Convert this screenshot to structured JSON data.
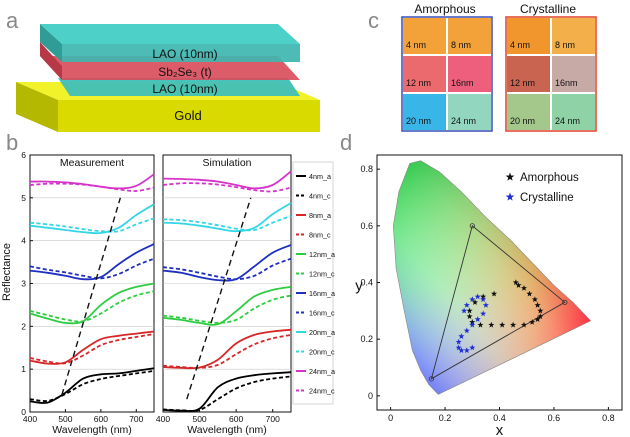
{
  "panel_labels": {
    "a": "a",
    "b": "b",
    "c": "c",
    "d": "d"
  },
  "panel_a": {
    "layers": [
      "LAO (10nm)",
      "Sb₂Se₃ (t)",
      "LAO (10nm)",
      "Gold"
    ],
    "colors": {
      "lao": "#3fbfb8",
      "sbse": "#d94a5a",
      "gold": "#e6e600"
    }
  },
  "panel_c": {
    "titles": [
      "Amorphous",
      "Crystalline"
    ],
    "thicknesses": [
      "4 nm",
      "8 nm",
      "12 nm",
      "16nm",
      "20 nm",
      "24 nm"
    ],
    "amorphous_colors": [
      "#f2a238",
      "#f2a238",
      "#ea6a6e",
      "#ee5f7e",
      "#39b6e8",
      "#93d6c0"
    ],
    "crystalline_colors": [
      "#f0962c",
      "#f3b04a",
      "#c86450",
      "#c7a9a6",
      "#a4c78c",
      "#8fd2a6"
    ],
    "frame_colors": {
      "amorphous": "#3a4db8",
      "crystalline": "#e0402a"
    }
  },
  "chart_data": [
    {
      "type": "line",
      "panel": "b",
      "title": "Measurement",
      "xlabel": "Wavelength (nm)",
      "ylabel": "Reflectance",
      "xlim": [
        400,
        750
      ],
      "ylim": [
        0,
        6
      ],
      "xticks": [
        "400",
        "500",
        "600",
        "700"
      ],
      "yticks": [
        "0",
        "1",
        "2",
        "3",
        "4",
        "5",
        "6"
      ],
      "curves": [
        {
          "offset": 0,
          "color": "#000000",
          "style": "solid",
          "x": [
            400,
            450,
            500,
            550,
            600,
            650,
            700,
            750
          ],
          "y": [
            0.25,
            0.22,
            0.45,
            0.78,
            0.88,
            0.9,
            0.96,
            1.02
          ]
        },
        {
          "offset": 0,
          "color": "#000000",
          "style": "dashed",
          "x": [
            400,
            450,
            500,
            550,
            600,
            650,
            700,
            750
          ],
          "y": [
            0.3,
            0.26,
            0.42,
            0.65,
            0.77,
            0.84,
            0.9,
            0.96
          ]
        },
        {
          "offset": 1,
          "color": "#d62728",
          "style": "solid",
          "x": [
            400,
            450,
            500,
            550,
            600,
            650,
            700,
            750
          ],
          "y": [
            1.2,
            1.13,
            1.16,
            1.45,
            1.7,
            1.78,
            1.83,
            1.88
          ]
        },
        {
          "offset": 1,
          "color": "#d62728",
          "style": "dashed",
          "x": [
            400,
            450,
            500,
            550,
            600,
            650,
            700,
            750
          ],
          "y": [
            1.26,
            1.18,
            1.14,
            1.32,
            1.56,
            1.68,
            1.75,
            1.82
          ]
        },
        {
          "offset": 2,
          "color": "#2ecc40",
          "style": "solid",
          "x": [
            400,
            450,
            500,
            550,
            600,
            650,
            700,
            750
          ],
          "y": [
            2.3,
            2.18,
            2.08,
            2.12,
            2.5,
            2.78,
            2.92,
            3.0
          ]
        },
        {
          "offset": 2,
          "color": "#2ecc40",
          "style": "dashed",
          "x": [
            400,
            450,
            500,
            550,
            600,
            650,
            700,
            750
          ],
          "y": [
            2.36,
            2.26,
            2.16,
            2.12,
            2.3,
            2.55,
            2.72,
            2.82
          ]
        },
        {
          "offset": 3,
          "color": "#1f2fbf",
          "style": "solid",
          "x": [
            400,
            450,
            500,
            550,
            600,
            650,
            700,
            750
          ],
          "y": [
            3.3,
            3.25,
            3.18,
            3.1,
            3.15,
            3.45,
            3.72,
            3.92
          ]
        },
        {
          "offset": 3,
          "color": "#1f2fbf",
          "style": "dashed",
          "x": [
            400,
            450,
            500,
            550,
            600,
            650,
            700,
            750
          ],
          "y": [
            3.4,
            3.32,
            3.26,
            3.18,
            3.12,
            3.22,
            3.42,
            3.58
          ]
        },
        {
          "offset": 4,
          "color": "#33d6e6",
          "style": "solid",
          "x": [
            400,
            450,
            500,
            550,
            600,
            650,
            700,
            750
          ],
          "y": [
            4.35,
            4.3,
            4.25,
            4.2,
            4.18,
            4.3,
            4.6,
            4.85
          ]
        },
        {
          "offset": 4,
          "color": "#33d6e6",
          "style": "dashed",
          "x": [
            400,
            450,
            500,
            550,
            600,
            650,
            700,
            750
          ],
          "y": [
            4.42,
            4.38,
            4.33,
            4.27,
            4.22,
            4.22,
            4.38,
            4.52
          ]
        },
        {
          "offset": 5,
          "color": "#d633cc",
          "style": "solid",
          "x": [
            400,
            450,
            500,
            550,
            600,
            650,
            700,
            750
          ],
          "y": [
            5.38,
            5.38,
            5.36,
            5.32,
            5.26,
            5.22,
            5.28,
            5.55
          ]
        },
        {
          "offset": 5,
          "color": "#d633cc",
          "style": "dashed",
          "x": [
            400,
            450,
            500,
            550,
            600,
            650,
            700,
            750
          ],
          "y": [
            5.3,
            5.33,
            5.33,
            5.31,
            5.26,
            5.2,
            5.16,
            5.24
          ]
        }
      ],
      "guide": {
        "x": [
          490,
          655
        ],
        "y": [
          0.4,
          5.0
        ]
      }
    },
    {
      "type": "line",
      "panel": "b",
      "title": "Simulation",
      "xlabel": "Wavelength (nm)",
      "xlim": [
        400,
        750
      ],
      "ylim": [
        0,
        6
      ],
      "xticks": [
        "400",
        "500",
        "600",
        "700"
      ],
      "legend": [
        "4nm_a",
        "4nm_c",
        "8nm_a",
        "8nm_c",
        "12nm_a",
        "12nm_c",
        "16nm_a",
        "16nm_c",
        "20nm_a",
        "20nm_c",
        "24nm_a",
        "24nm_c"
      ],
      "curves": [
        {
          "offset": 0,
          "color": "#000000",
          "style": "solid",
          "x": [
            400,
            450,
            500,
            550,
            600,
            650,
            700,
            750
          ],
          "y": [
            0.05,
            0.03,
            0.08,
            0.58,
            0.78,
            0.86,
            0.9,
            0.93
          ]
        },
        {
          "offset": 0,
          "color": "#000000",
          "style": "dashed",
          "x": [
            400,
            450,
            500,
            550,
            600,
            650,
            700,
            750
          ],
          "y": [
            0.06,
            0.04,
            0.05,
            0.3,
            0.55,
            0.7,
            0.78,
            0.83
          ]
        },
        {
          "offset": 1,
          "color": "#d62728",
          "style": "solid",
          "x": [
            400,
            450,
            500,
            550,
            600,
            650,
            700,
            750
          ],
          "y": [
            1.05,
            1.03,
            1.04,
            1.22,
            1.6,
            1.8,
            1.88,
            1.92
          ]
        },
        {
          "offset": 1,
          "color": "#d62728",
          "style": "dashed",
          "x": [
            400,
            450,
            500,
            550,
            600,
            650,
            700,
            750
          ],
          "y": [
            1.08,
            1.05,
            1.03,
            1.1,
            1.35,
            1.58,
            1.72,
            1.8
          ]
        },
        {
          "offset": 2,
          "color": "#2ecc40",
          "style": "solid",
          "x": [
            400,
            450,
            500,
            550,
            600,
            650,
            700,
            750
          ],
          "y": [
            2.2,
            2.15,
            2.08,
            2.05,
            2.35,
            2.7,
            2.85,
            2.92
          ]
        },
        {
          "offset": 2,
          "color": "#2ecc40",
          "style": "dashed",
          "x": [
            400,
            450,
            500,
            550,
            600,
            650,
            700,
            750
          ],
          "y": [
            2.25,
            2.2,
            2.13,
            2.08,
            2.15,
            2.42,
            2.62,
            2.72
          ]
        },
        {
          "offset": 3,
          "color": "#1f2fbf",
          "style": "solid",
          "x": [
            400,
            450,
            500,
            550,
            600,
            650,
            700,
            750
          ],
          "y": [
            3.3,
            3.25,
            3.15,
            3.08,
            3.1,
            3.4,
            3.72,
            3.9
          ]
        },
        {
          "offset": 3,
          "color": "#1f2fbf",
          "style": "dashed",
          "x": [
            400,
            450,
            500,
            550,
            600,
            650,
            700,
            750
          ],
          "y": [
            3.38,
            3.33,
            3.25,
            3.16,
            3.1,
            3.18,
            3.42,
            3.58
          ]
        },
        {
          "offset": 4,
          "color": "#33d6e6",
          "style": "solid",
          "x": [
            400,
            450,
            500,
            550,
            600,
            650,
            700,
            750
          ],
          "y": [
            4.42,
            4.4,
            4.35,
            4.28,
            4.22,
            4.3,
            4.62,
            4.88
          ]
        },
        {
          "offset": 4,
          "color": "#33d6e6",
          "style": "dashed",
          "x": [
            400,
            450,
            500,
            550,
            600,
            650,
            700,
            750
          ],
          "y": [
            4.5,
            4.48,
            4.43,
            4.36,
            4.28,
            4.25,
            4.42,
            4.58
          ]
        },
        {
          "offset": 5,
          "color": "#d633cc",
          "style": "solid",
          "x": [
            400,
            450,
            500,
            550,
            600,
            650,
            700,
            750
          ],
          "y": [
            5.45,
            5.44,
            5.42,
            5.38,
            5.3,
            5.22,
            5.3,
            5.62
          ]
        },
        {
          "offset": 5,
          "color": "#d633cc",
          "style": "dashed",
          "x": [
            400,
            450,
            500,
            550,
            600,
            650,
            700,
            750
          ],
          "y": [
            5.3,
            5.34,
            5.34,
            5.31,
            5.25,
            5.18,
            5.15,
            5.24
          ]
        }
      ],
      "guide": {
        "x": [
          465,
          640
        ],
        "y": [
          0.3,
          5.0
        ]
      }
    },
    {
      "type": "scatter",
      "panel": "d",
      "xlabel": "x",
      "ylabel": "y",
      "xlim": [
        -0.05,
        0.85
      ],
      "ylim": [
        -0.05,
        0.85
      ],
      "xticks": [
        "0",
        "0.2",
        "0.4",
        "0.6",
        "0.8"
      ],
      "yticks": [
        "0",
        "0.2",
        "0.4",
        "0.6",
        "0.8"
      ],
      "series": [
        {
          "name": "Amorphous",
          "color": "#111111",
          "x": [
            0.46,
            0.47,
            0.49,
            0.51,
            0.53,
            0.54,
            0.55,
            0.55,
            0.54,
            0.52,
            0.49,
            0.45,
            0.41,
            0.37,
            0.33,
            0.3,
            0.29,
            0.29,
            0.31,
            0.34,
            0.38
          ],
          "y": [
            0.4,
            0.39,
            0.38,
            0.36,
            0.34,
            0.32,
            0.3,
            0.28,
            0.27,
            0.26,
            0.25,
            0.25,
            0.25,
            0.25,
            0.25,
            0.26,
            0.28,
            0.3,
            0.33,
            0.35,
            0.36
          ]
        },
        {
          "name": "Crystalline",
          "color": "#1f2fd8",
          "x": [
            0.27,
            0.28,
            0.3,
            0.32,
            0.34,
            0.35,
            0.34,
            0.32,
            0.3,
            0.28,
            0.26,
            0.25,
            0.25,
            0.26,
            0.28,
            0.3
          ],
          "y": [
            0.3,
            0.32,
            0.34,
            0.35,
            0.34,
            0.32,
            0.29,
            0.27,
            0.25,
            0.23,
            0.21,
            0.19,
            0.17,
            0.16,
            0.16,
            0.17
          ]
        }
      ],
      "legend_position": "top-right"
    }
  ]
}
